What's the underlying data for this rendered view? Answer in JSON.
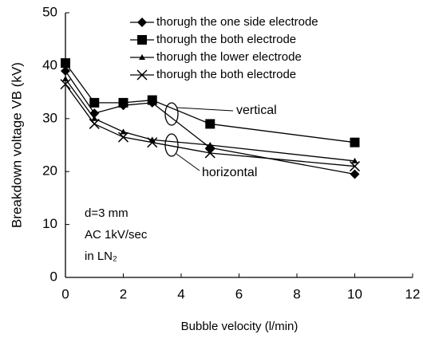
{
  "chart_data": {
    "type": "line",
    "x_label": "Bubble velocity (l/min)",
    "y_label": "Breakdown voltage VB (kV)",
    "xlim": [
      0,
      12
    ],
    "xticks": [
      0,
      2,
      4,
      6,
      8,
      10,
      12
    ],
    "ylim": [
      0,
      50
    ],
    "yticks": [
      0,
      10,
      20,
      30,
      40,
      50
    ],
    "x": [
      0,
      1,
      2,
      3,
      5,
      10
    ],
    "series": [
      {
        "name": "thorugh the one side electrode",
        "marker": "diamond",
        "color": "#000000",
        "values": [
          39,
          31,
          32.5,
          33,
          24.5,
          19.5
        ]
      },
      {
        "name": "thorugh the both electrode",
        "marker": "square",
        "color": "#000000",
        "values": [
          40.5,
          33,
          33,
          33.5,
          29,
          25.5
        ]
      },
      {
        "name": "thorugh the lower electrode",
        "marker": "triangle",
        "color": "#000000",
        "values": [
          37.5,
          30,
          27.5,
          26,
          25,
          22
        ]
      },
      {
        "name": "thorugh the both electrode",
        "marker": "x",
        "color": "#000000",
        "values": [
          36.5,
          29,
          26.5,
          25.5,
          23.5,
          21
        ]
      }
    ],
    "annotations": [
      "vertical",
      "horizontal",
      "d=3 mm",
      "AC 1kV/sec",
      "in LN₂"
    ],
    "legend": "top-right"
  }
}
